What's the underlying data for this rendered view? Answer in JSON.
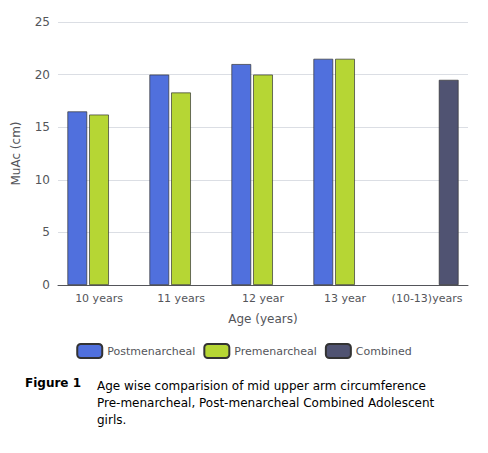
{
  "chart_data": {
    "type": "bar",
    "categories": [
      "10 years",
      "11 years",
      "12 year",
      "13 year",
      "(10-13)years"
    ],
    "series": [
      {
        "name": "Postmenarcheal",
        "values": [
          16.5,
          20.0,
          21.0,
          21.5,
          null
        ]
      },
      {
        "name": "Premenarcheal",
        "values": [
          16.2,
          18.3,
          20.0,
          21.5,
          null
        ]
      },
      {
        "name": "Combined",
        "values": [
          null,
          null,
          null,
          null,
          19.5
        ]
      }
    ],
    "xlabel": "Age (years)",
    "ylabel": "MuAc (cm)",
    "ylim": [
      0,
      25
    ],
    "yticks": [
      0,
      5,
      10,
      15,
      20,
      25
    ],
    "grid": true,
    "legend": "bottom",
    "annotations": [
      "Figure 1",
      "Age wise comparision of mid upper arm circumference Pre-menarcheal, Post-menarcheal Combined Adolescent girls."
    ]
  }
}
